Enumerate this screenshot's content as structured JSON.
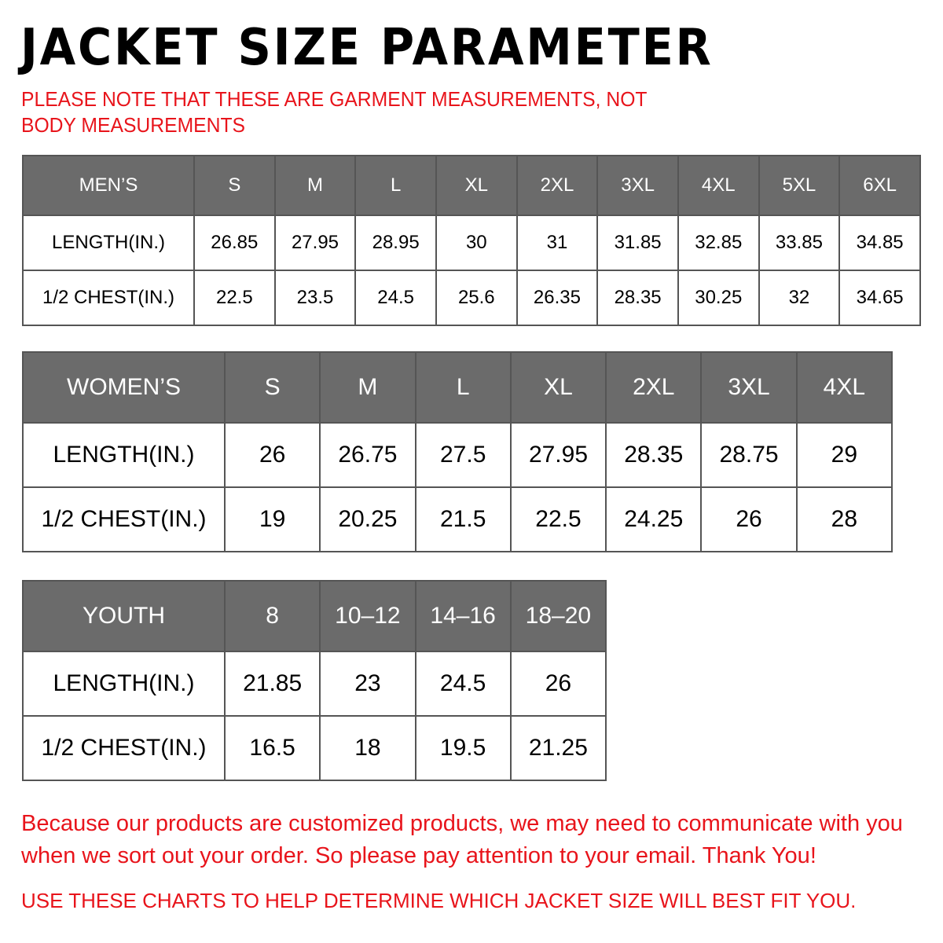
{
  "title": "JACKET SIZE PARAMETER",
  "note": "PLEASE NOTE THAT THESE ARE GARMENT MEASUREMENTS, NOT BODY MEASUREMENTS",
  "colors": {
    "accent_red": "#e8141b",
    "header_gray": "#6b6b6b"
  },
  "tables": {
    "men": {
      "header": [
        "MEN’S",
        "S",
        "M",
        "L",
        "XL",
        "2XL",
        "3XL",
        "4XL",
        "5XL",
        "6XL"
      ],
      "rows": [
        [
          "LENGTH(IN.)",
          "26.85",
          "27.95",
          "28.95",
          "30",
          "31",
          "31.85",
          "32.85",
          "33.85",
          "34.85"
        ],
        [
          "1/2 CHEST(IN.)",
          "22.5",
          "23.5",
          "24.5",
          "25.6",
          "26.35",
          "28.35",
          "30.25",
          "32",
          "34.65"
        ]
      ]
    },
    "women": {
      "header": [
        "WOMEN’S",
        "S",
        "M",
        "L",
        "XL",
        "2XL",
        "3XL",
        "4XL"
      ],
      "rows": [
        [
          "LENGTH(IN.)",
          "26",
          "26.75",
          "27.5",
          "27.95",
          "28.35",
          "28.75",
          "29"
        ],
        [
          "1/2 CHEST(IN.)",
          "19",
          "20.25",
          "21.5",
          "22.5",
          "24.25",
          "26",
          "28"
        ]
      ]
    },
    "youth": {
      "header": [
        "YOUTH",
        "8",
        "10–12",
        "14–16",
        "18–20"
      ],
      "rows": [
        [
          "LENGTH(IN.)",
          "21.85",
          "23",
          "24.5",
          "26"
        ],
        [
          "1/2 CHEST(IN.)",
          "16.5",
          "18",
          "19.5",
          "21.25"
        ]
      ]
    }
  },
  "footer": {
    "message": "Because our products are customized products, we may need to communicate with you when we sort out your order. So please pay attention to your email. Thank You!",
    "advice": "USE THESE CHARTS TO HELP DETERMINE WHICH JACKET SIZE WILL BEST FIT YOU."
  }
}
